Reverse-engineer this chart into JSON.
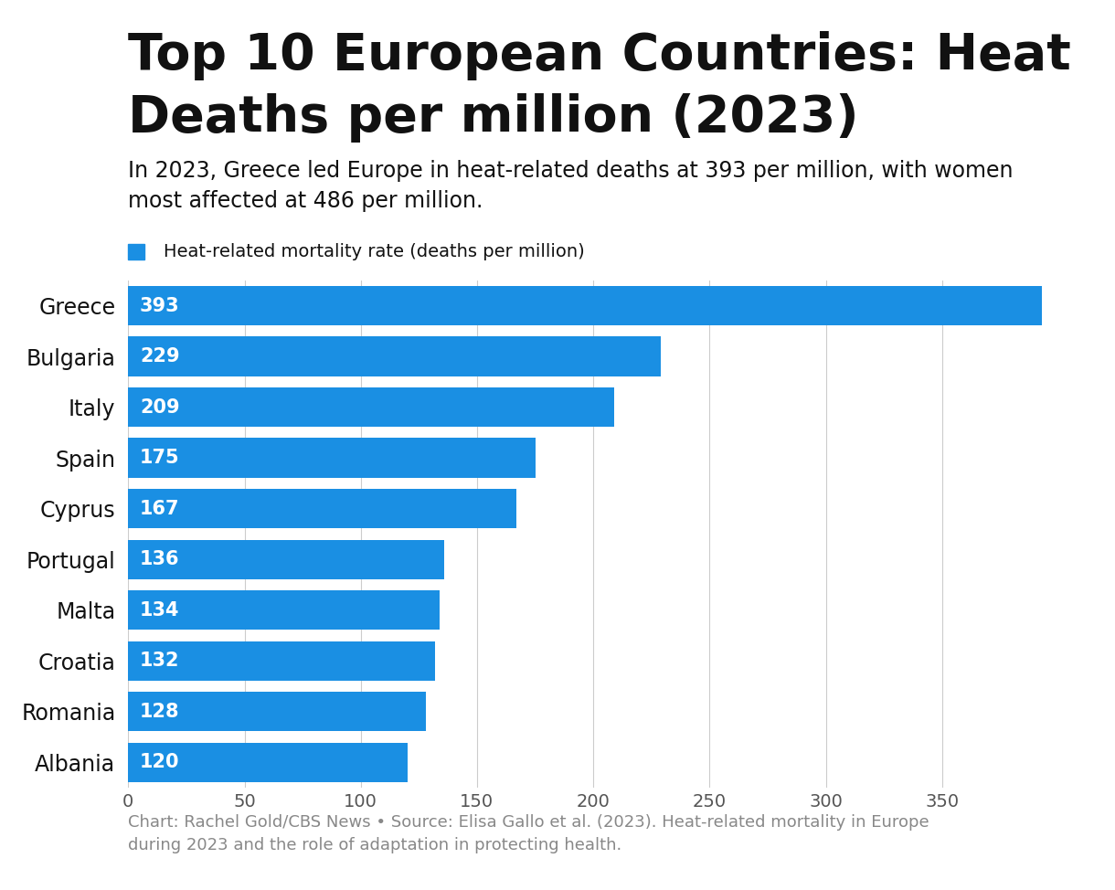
{
  "title_line1": "Top 10 European Countries: Heat",
  "title_line2": "Deaths per million (2023)",
  "subtitle": "In 2023, Greece led Europe in heat-related deaths at 393 per million, with women\nmost affected at 486 per million.",
  "legend_label": "Heat-related mortality rate (deaths per million)",
  "categories": [
    "Greece",
    "Bulgaria",
    "Italy",
    "Spain",
    "Cyprus",
    "Portugal",
    "Malta",
    "Croatia",
    "Romania",
    "Albania"
  ],
  "values": [
    393,
    229,
    209,
    175,
    167,
    136,
    134,
    132,
    128,
    120
  ],
  "bar_color": "#1a8fe3",
  "bar_label_color": "#ffffff",
  "text_color": "#111111",
  "background_color": "#ffffff",
  "xlim": [
    0,
    410
  ],
  "xticks": [
    0,
    50,
    100,
    150,
    200,
    250,
    300,
    350
  ],
  "footer": "Chart: Rachel Gold/CBS News • Source: Elisa Gallo et al. (2023). Heat-related mortality in Europe\nduring 2023 and the role of adaptation in protecting health.",
  "title_fontsize": 40,
  "subtitle_fontsize": 17,
  "legend_fontsize": 14,
  "bar_label_fontsize": 15,
  "category_fontsize": 17,
  "tick_fontsize": 14,
  "footer_fontsize": 13,
  "legend_color": "#1a8fe3",
  "grid_color": "#cccccc"
}
